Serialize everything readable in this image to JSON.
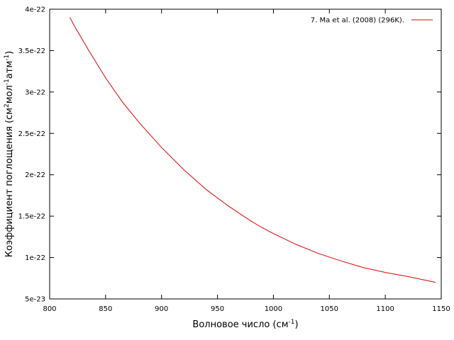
{
  "chart_data": {
    "type": "line",
    "title": "",
    "xlabel": {
      "text": "Волновое число (см",
      "sup": "-1",
      "tail": ")"
    },
    "ylabel": {
      "parts": [
        {
          "text": "Коэффициент поглощения (см",
          "sup": false
        },
        {
          "text": "2",
          "sup": true
        },
        {
          "text": "мол",
          "sup": false
        },
        {
          "text": "-1",
          "sup": true
        },
        {
          "text": "атм",
          "sup": false
        },
        {
          "text": "-1",
          "sup": true
        },
        {
          "text": ")",
          "sup": false
        }
      ]
    },
    "xlim": [
      800,
      1150
    ],
    "ylim": [
      5e-23,
      4e-22
    ],
    "x_ticks": [
      800,
      850,
      900,
      950,
      1000,
      1050,
      1100,
      1150
    ],
    "x_tick_labels": [
      "800",
      "850",
      "900",
      "950",
      "1000",
      "1050",
      "1100",
      "1150"
    ],
    "y_ticks": [
      5e-23,
      1e-22,
      1.5e-22,
      2e-22,
      2.5e-22,
      3e-22,
      3.5e-22,
      4e-22
    ],
    "y_tick_labels": [
      "5e-23",
      "1e-22",
      "1.5e-22",
      "2e-22",
      "2.5e-22",
      "3e-22",
      "3.5e-22",
      "4e-22"
    ],
    "grid": false,
    "legend_position": "top-right",
    "series": [
      {
        "name": "7. Ma et al. (2008) (296K).",
        "color": "#e00000",
        "x": [
          818,
          822,
          835,
          850,
          865,
          880,
          900,
          920,
          940,
          960,
          980,
          990,
          1000,
          1020,
          1040,
          1060,
          1080,
          1100,
          1120,
          1145
        ],
        "y": [
          3.9e-22,
          3.8e-22,
          3.5e-22,
          3.17e-22,
          2.88e-22,
          2.63e-22,
          2.33e-22,
          2.06e-22,
          1.82e-22,
          1.62e-22,
          1.44e-22,
          1.36e-22,
          1.29e-22,
          1.16e-22,
          1.05e-22,
          9.6e-23,
          8.8e-23,
          8.2e-23,
          7.7e-23,
          7e-23
        ]
      }
    ]
  }
}
